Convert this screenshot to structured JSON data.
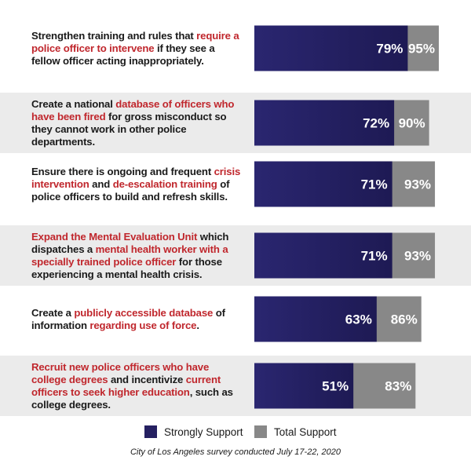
{
  "chart_data": {
    "type": "bar",
    "orientation": "horizontal",
    "layout": "overlapping",
    "categories": [
      "Strengthen training and rules that require a police officer to intervene if they see a fellow officer acting inappropriately.",
      "Create a national database of officers who have been fired for gross misconduct so they cannot work in other police departments.",
      "Ensure there is ongoing and frequent crisis intervention and de-escalation training of police officers to build and refresh skills.",
      "Expand the Mental Evaluation Unit which dispatches a mental health worker with a specially trained police officer for those experiencing a mental health crisis.",
      "Create a publicly accessible database of information regarding use of force.",
      "Recruit new police officers who have college degrees and incentivize current officers to seek higher education, such as college degrees."
    ],
    "category_segments": [
      [
        {
          "text": "Strengthen training and rules that ",
          "highlight": false
        },
        {
          "text": "require a police officer to intervene",
          "highlight": true
        },
        {
          "text": " if they see a fellow officer acting inappropriately.",
          "highlight": false
        }
      ],
      [
        {
          "text": "Create a national ",
          "highlight": false
        },
        {
          "text": "database of officers who have been fired",
          "highlight": true
        },
        {
          "text": " for gross misconduct so they cannot work in other police departments.",
          "highlight": false
        }
      ],
      [
        {
          "text": "Ensure there is ongoing and frequent ",
          "highlight": false
        },
        {
          "text": "crisis intervention",
          "highlight": true
        },
        {
          "text": " and ",
          "highlight": false
        },
        {
          "text": "de-escalation training",
          "highlight": true
        },
        {
          "text": " of police officers to build and refresh skills.",
          "highlight": false
        }
      ],
      [
        {
          "text": "Expand the Mental Evaluation Unit",
          "highlight": true
        },
        {
          "text": " which dispatches a ",
          "highlight": false
        },
        {
          "text": "mental health worker with a specially trained police officer",
          "highlight": true
        },
        {
          "text": " for those experiencing a mental health crisis.",
          "highlight": false
        }
      ],
      [
        {
          "text": "Create a ",
          "highlight": false
        },
        {
          "text": "publicly accessible database",
          "highlight": true
        },
        {
          "text": " of information ",
          "highlight": false
        },
        {
          "text": "regarding use of force",
          "highlight": true
        },
        {
          "text": ".",
          "highlight": false
        }
      ],
      [
        {
          "text": "Recruit new police officers who have college degrees",
          "highlight": true
        },
        {
          "text": " and incentivize ",
          "highlight": false
        },
        {
          "text": "current officers to seek higher education",
          "highlight": true
        },
        {
          "text": ", such as college degrees.",
          "highlight": false
        }
      ]
    ],
    "series": [
      {
        "name": "Strongly Support",
        "values": [
          79,
          72,
          71,
          71,
          63,
          51
        ],
        "labels": [
          "79%",
          "72%",
          "71%",
          "71%",
          "63%",
          "51%"
        ],
        "color": "#252061"
      },
      {
        "name": "Total Support",
        "values": [
          95,
          90,
          93,
          93,
          86,
          83
        ],
        "labels": [
          "95%",
          "90%",
          "93%",
          "93%",
          "86%",
          "83%"
        ],
        "color": "#888888"
      }
    ],
    "xlim": [
      0,
      100
    ],
    "grid": false,
    "legend_position": "bottom-center",
    "shaded_rows": [
      1,
      3,
      5
    ],
    "row_background": "#ebebeb",
    "highlight_color": "#c0272d"
  },
  "legend": {
    "strongly_label": "Strongly Support",
    "total_label": "Total Support"
  },
  "footnote": "City of Los Angeles survey conducted July 17-22, 2020"
}
